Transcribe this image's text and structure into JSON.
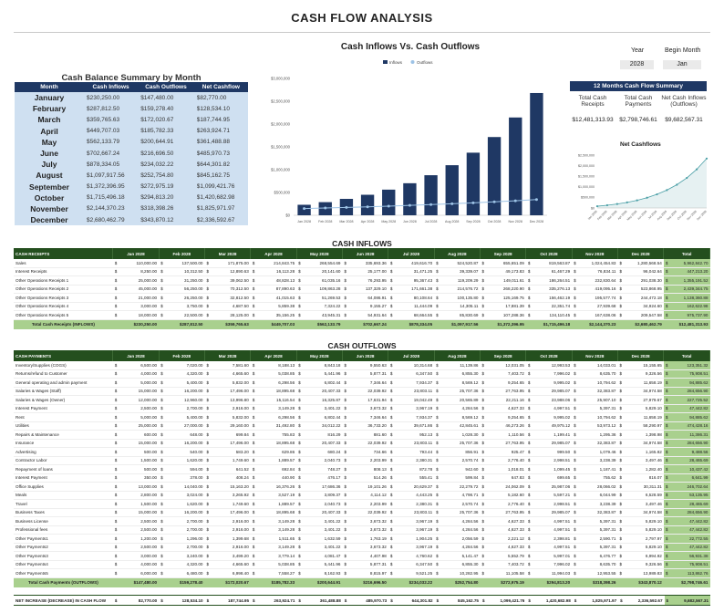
{
  "title": "CASH FLOW ANALYSIS",
  "balance_summary": {
    "title": "Cash Balance Summary by Month",
    "headers": [
      "Month",
      "Cash Inflows",
      "Cash Outflows",
      "Net Cashflow"
    ],
    "rows": [
      [
        "January",
        "$230,250.00",
        "$147,480.00",
        "$82,770.00"
      ],
      [
        "February",
        "$287,812.50",
        "$159,278.40",
        "$128,534.10"
      ],
      [
        "March",
        "$359,765.63",
        "$172,020.67",
        "$187,744.95"
      ],
      [
        "April",
        "$449,707.03",
        "$185,782.33",
        "$263,924.71"
      ],
      [
        "May",
        "$562,133.79",
        "$200,644.91",
        "$361,488.88"
      ],
      [
        "June",
        "$702,667.24",
        "$216,696.50",
        "$485,970.73"
      ],
      [
        "July",
        "$878,334.05",
        "$234,032.22",
        "$644,301.82"
      ],
      [
        "August",
        "$1,097,917.56",
        "$252,754.80",
        "$845,162.75"
      ],
      [
        "September",
        "$1,372,396.95",
        "$272,975.19",
        "$1,099,421.76"
      ],
      [
        "October",
        "$1,715,496.18",
        "$294,813.20",
        "$1,420,682.98"
      ],
      [
        "November",
        "$2,144,370.23",
        "$318,398.26",
        "$1,825,971.97"
      ],
      [
        "December",
        "$2,680,462.79",
        "$343,870.12",
        "$2,336,592.67"
      ]
    ]
  },
  "chart_data": [
    {
      "type": "bar",
      "title": "Cash Inflows Vs. Cash Outflows",
      "categories": [
        "Jan 2028",
        "Feb 2028",
        "Mar 2028",
        "Apr 2028",
        "May 2028",
        "Jun 2028",
        "Jul 2028",
        "Aug 2028",
        "Sep 2028",
        "Oct 2028",
        "Nov 2028",
        "Dec 2028"
      ],
      "series": [
        {
          "name": "Inflows",
          "kind": "bar",
          "color": "#1f3864",
          "values": [
            230250,
            287812.5,
            359765.63,
            449707.03,
            562133.79,
            702667.24,
            878334.05,
            1097917.56,
            1372396.95,
            1715496.18,
            2144370.23,
            2680462.79
          ]
        },
        {
          "name": "Outflows",
          "kind": "line",
          "color": "#9dc3e6",
          "values": [
            147480,
            159278.4,
            172020.67,
            185782.33,
            200644.91,
            216696.5,
            234032.22,
            252754.8,
            272975.19,
            294813.2,
            318398.26,
            343870.12
          ]
        }
      ],
      "ylim": [
        0,
        3000000
      ],
      "yticks": [
        "$0",
        "$500,000",
        "$1,000,000",
        "$1,500,000",
        "$2,000,000",
        "$2,500,000",
        "$3,000,000"
      ],
      "legend": "top-center",
      "grid": false
    },
    {
      "type": "area",
      "title": "Net Cashflows",
      "categories": [
        "Jan 2028",
        "Feb 2028",
        "Mar 2028",
        "Apr 2028",
        "May 2028",
        "Jun 2028",
        "Jul 2028",
        "Aug 2028",
        "Sep 2028",
        "Oct 2028",
        "Nov 2028",
        "Dec 2028"
      ],
      "values": [
        82770,
        128534.1,
        187744.95,
        263924.71,
        361488.88,
        485970.73,
        644301.82,
        845162.75,
        1099421.76,
        1420682.98,
        1825971.97,
        2336592.67
      ],
      "ylim": [
        0,
        2500000
      ],
      "yticks": [
        "$0",
        "$500,000",
        "$1,000,000",
        "$1,500,000",
        "$2,000,000",
        "$2,500,000"
      ],
      "color": "#4a9fa6",
      "grid": false
    }
  ],
  "year": {
    "label": "Year",
    "value": "2028"
  },
  "begin_month": {
    "label": "Begin Month",
    "value": "Jan"
  },
  "summary12": {
    "title": "12 Months Cash Flow Summary",
    "labels": [
      "Total Cash Receipts",
      "Total Cash Payments",
      "Net Cash Inflows (Outflows)"
    ],
    "values": [
      "$12,481,313.93",
      "$2,798,746.61",
      "$9,682,567.31"
    ]
  },
  "inflows": {
    "title": "CASH INFLOWS",
    "header_label": "CASH RECEIPTS",
    "months": [
      "Jan 2028",
      "Feb 2028",
      "Mar 2028",
      "Apr 2028",
      "May 2028",
      "Jun 2028",
      "Jul 2028",
      "Aug 2028",
      "Sep 2028",
      "Oct 2028",
      "Nov 2028",
      "Dec 2028"
    ],
    "total_label": "Total",
    "rows": [
      {
        "label": "Sales",
        "values": [
          "110,000.00",
          "137,500.00",
          "171,875.00",
          "214,843.75",
          "268,554.69",
          "335,693.36",
          "419,616.70",
          "524,520.87",
          "655,651.09",
          "819,563.87",
          "1,024,454.83",
          "1,280,568.54"
        ],
        "total": "5,962,842.70"
      },
      {
        "label": "Interest Receipts",
        "values": [
          "8,250.00",
          "10,312.50",
          "12,890.63",
          "16,113.28",
          "20,141.60",
          "25,177.00",
          "31,471.25",
          "39,339.07",
          "49,173.83",
          "61,467.29",
          "76,834.11",
          "96,042.64"
        ],
        "total": "447,213.20"
      },
      {
        "label": "Other Operations Receipts 1",
        "values": [
          "25,000.00",
          "31,250.00",
          "39,062.50",
          "48,828.13",
          "61,035.16",
          "76,293.95",
          "95,367.43",
          "119,209.29",
          "149,011.61",
          "186,264.51",
          "232,830.64",
          "291,038.30"
        ],
        "total": "1,355,191.52"
      },
      {
        "label": "Other Operations Receipts 2",
        "values": [
          "45,000.00",
          "56,250.00",
          "70,312.50",
          "87,890.63",
          "109,863.28",
          "137,329.10",
          "171,661.38",
          "214,576.72",
          "268,220.90",
          "335,276.13",
          "419,095.16",
          "523,868.95"
        ],
        "total": "2,439,344.75"
      },
      {
        "label": "Other Operations Receipts 3",
        "values": [
          "21,000.00",
          "26,250.00",
          "32,812.50",
          "41,015.63",
          "51,269.53",
          "64,086.91",
          "80,108.64",
          "100,135.80",
          "125,169.75",
          "156,462.19",
          "195,577.74",
          "244,472.18"
        ],
        "total": "1,138,360.88"
      },
      {
        "label": "Other Operations Receipts 4",
        "values": [
          "3,000.00",
          "3,750.00",
          "4,687.50",
          "5,859.38",
          "7,324.22",
          "9,155.27",
          "11,444.09",
          "14,305.11",
          "17,881.39",
          "22,351.74",
          "27,939.68",
          "34,924.60"
        ],
        "total": "162,622.98"
      },
      {
        "label": "Other Operations Receipts 5",
        "values": [
          "18,000.00",
          "22,500.00",
          "28,125.00",
          "35,156.25",
          "43,945.31",
          "54,931.64",
          "68,664.55",
          "85,830.69",
          "107,288.36",
          "134,110.45",
          "167,638.06",
          "209,547.58"
        ],
        "total": "975,737.90"
      }
    ],
    "total_row": {
      "label": "Total Cash Receipts (INFLOWS)",
      "values": [
        "$230,250.00",
        "$287,812.50",
        "$359,765.63",
        "$449,707.03",
        "$562,133.79",
        "$702,667.24",
        "$878,334.05",
        "$1,097,917.56",
        "$1,372,396.95",
        "$1,715,496.18",
        "$2,144,370.23",
        "$2,680,462.79"
      ],
      "total": "$12,481,313.93"
    }
  },
  "outflows": {
    "title": "CASH OUTFLOWS",
    "header_label": "CASH PAYMENTS",
    "months": [
      "Jan 2028",
      "Feb 2028",
      "Mar 2028",
      "Apr 2028",
      "May 2028",
      "Jun 2028",
      "Jul 2028",
      "Aug 2028",
      "Sep 2028",
      "Oct 2028",
      "Nov 2028",
      "Dec 2028"
    ],
    "total_label": "Total",
    "rows": [
      {
        "label": "Inventory/Supplies (COGS)",
        "values": [
          "6,500.00",
          "7,020.00",
          "7,581.60",
          "8,188.13",
          "8,843.18",
          "9,550.63",
          "10,314.68",
          "11,139.86",
          "12,031.05",
          "12,993.53",
          "14,033.01",
          "15,155.65"
        ],
        "total": "123,351.32"
      },
      {
        "label": "Returns/refund to Customer",
        "values": [
          "4,000.00",
          "4,320.00",
          "4,665.60",
          "5,038.85",
          "5,441.96",
          "5,877.31",
          "6,347.50",
          "6,855.30",
          "7,403.72",
          "7,996.02",
          "8,635.70",
          "9,326.56"
        ],
        "total": "75,908.51"
      },
      {
        "label": "General operating and admin payment",
        "values": [
          "5,000.00",
          "5,400.00",
          "5,832.00",
          "6,298.56",
          "6,802.44",
          "7,346.64",
          "7,934.37",
          "8,569.12",
          "9,254.65",
          "9,995.02",
          "10,794.62",
          "11,658.19"
        ],
        "total": "94,885.62"
      },
      {
        "label": "Salaries & Wages (Staff)",
        "values": [
          "15,000.00",
          "16,200.00",
          "17,496.00",
          "18,895.68",
          "20,407.33",
          "22,039.92",
          "23,803.11",
          "25,707.36",
          "27,763.95",
          "29,985.07",
          "32,383.87",
          "34,974.58"
        ],
        "total": "284,656.90"
      },
      {
        "label": "Salaries & Wages (Owner)",
        "values": [
          "12,000.00",
          "12,960.00",
          "13,996.80",
          "15,116.54",
          "16,325.87",
          "17,631.94",
          "19,042.49",
          "20,565.89",
          "22,211.16",
          "23,988.06",
          "25,907.10",
          "27,979.67"
        ],
        "total": "227,725.52"
      },
      {
        "label": "Interest Payment",
        "values": [
          "2,500.00",
          "2,700.00",
          "2,916.00",
          "3,149.28",
          "3,401.22",
          "3,673.32",
          "3,967.19",
          "4,284.56",
          "4,627.33",
          "4,997.51",
          "5,397.31",
          "5,829.10"
        ],
        "total": "47,442.82"
      },
      {
        "label": "Rent",
        "values": [
          "5,000.00",
          "5,400.00",
          "5,832.00",
          "6,298.56",
          "6,802.44",
          "7,346.64",
          "7,934.37",
          "8,569.12",
          "9,254.65",
          "9,995.02",
          "10,794.62",
          "11,658.19"
        ],
        "total": "94,885.62"
      },
      {
        "label": "Utilities",
        "values": [
          "25,000.00",
          "27,000.00",
          "29,160.00",
          "31,492.80",
          "34,012.22",
          "36,733.20",
          "39,671.86",
          "42,845.61",
          "46,273.26",
          "49,975.12",
          "53,973.12",
          "58,290.97"
        ],
        "total": "474,428.16"
      },
      {
        "label": "Repairs & Maintenance",
        "values": [
          "600.00",
          "648.00",
          "699.84",
          "755.83",
          "816.29",
          "881.60",
          "952.13",
          "1,028.30",
          "1,110.56",
          "1,199.41",
          "1,295.36",
          "1,398.98"
        ],
        "total": "11,386.31"
      },
      {
        "label": "Insurance",
        "values": [
          "15,000.00",
          "16,200.00",
          "17,496.00",
          "18,895.68",
          "20,407.33",
          "22,039.92",
          "23,803.11",
          "25,707.36",
          "27,763.95",
          "29,985.07",
          "32,383.87",
          "34,974.58"
        ],
        "total": "284,656.90"
      },
      {
        "label": "Advertising",
        "values": [
          "500.00",
          "540.00",
          "583.20",
          "629.86",
          "680.24",
          "734.66",
          "793.44",
          "856.91",
          "925.47",
          "999.50",
          "1,079.46",
          "1,165.82"
        ],
        "total": "9,488.56"
      },
      {
        "label": "Contractor Labor",
        "values": [
          "1,500.00",
          "1,620.00",
          "1,749.60",
          "1,889.57",
          "2,040.73",
          "2,203.99",
          "2,380.31",
          "2,570.74",
          "2,776.40",
          "2,998.51",
          "3,238.39",
          "3,497.46"
        ],
        "total": "28,465.69"
      },
      {
        "label": "Repayment of loans",
        "values": [
          "500.00",
          "594.00",
          "641.52",
          "692.84",
          "748.27",
          "808.13",
          "872.78",
          "942.60",
          "1,018.01",
          "1,099.45",
          "1,187.41",
          "1,282.40"
        ],
        "total": "10,437.42"
      },
      {
        "label": "Interest Payment",
        "values": [
          "350.00",
          "378.00",
          "408.24",
          "440.90",
          "476.17",
          "514.26",
          "555.41",
          "599.84",
          "647.83",
          "699.65",
          "755.62",
          "816.07"
        ],
        "total": "6,641.99"
      },
      {
        "label": "Office Supplies",
        "values": [
          "13,000.00",
          "14,040.00",
          "15,163.20",
          "16,376.26",
          "17,686.36",
          "19,101.26",
          "20,629.37",
          "22,279.72",
          "24,062.09",
          "25,987.06",
          "28,066.02",
          "30,311.31"
        ],
        "total": "246,702.64"
      },
      {
        "label": "Meals",
        "values": [
          "2,800.00",
          "3,024.00",
          "3,265.92",
          "3,527.19",
          "3,809.37",
          "4,114.12",
          "4,443.25",
          "4,798.71",
          "5,182.60",
          "5,597.21",
          "6,044.99",
          "6,528.59"
        ],
        "total": "53,135.95"
      },
      {
        "label": "Travel",
        "values": [
          "1,500.00",
          "1,620.00",
          "1,749.60",
          "1,889.57",
          "2,040.73",
          "2,203.99",
          "2,380.31",
          "2,570.74",
          "2,776.40",
          "2,998.51",
          "3,238.39",
          "3,497.46"
        ],
        "total": "28,465.69"
      },
      {
        "label": "Business Taxes",
        "values": [
          "15,000.00",
          "16,200.00",
          "17,496.00",
          "18,895.68",
          "20,407.33",
          "22,039.92",
          "23,803.11",
          "25,707.36",
          "27,763.95",
          "29,985.07",
          "32,383.87",
          "34,974.58"
        ],
        "total": "284,656.90"
      },
      {
        "label": "Business License",
        "values": [
          "2,500.00",
          "2,700.00",
          "2,916.00",
          "3,149.28",
          "3,401.22",
          "3,673.32",
          "3,967.19",
          "4,284.56",
          "4,627.33",
          "4,997.51",
          "5,397.31",
          "5,829.10"
        ],
        "total": "47,442.82"
      },
      {
        "label": "Professional fees",
        "values": [
          "2,500.00",
          "2,700.00",
          "2,916.00",
          "3,149.28",
          "3,401.22",
          "3,673.32",
          "3,967.19",
          "4,284.56",
          "4,627.33",
          "4,997.51",
          "5,397.31",
          "5,829.10"
        ],
        "total": "47,442.82"
      },
      {
        "label": "Other Payments1",
        "values": [
          "1,200.00",
          "1,296.00",
          "1,399.68",
          "1,511.65",
          "1,632.59",
          "1,763.19",
          "1,904.25",
          "2,056.59",
          "2,221.12",
          "2,398.81",
          "2,590.71",
          "2,797.97"
        ],
        "total": "22,772.55"
      },
      {
        "label": "Other Payments2",
        "values": [
          "2,500.00",
          "2,700.00",
          "2,916.00",
          "3,149.28",
          "3,401.22",
          "3,673.32",
          "3,967.19",
          "4,284.56",
          "4,627.33",
          "4,997.51",
          "5,397.31",
          "5,829.10"
        ],
        "total": "47,442.82"
      },
      {
        "label": "Other Payments3",
        "values": [
          "3,000.00",
          "3,240.00",
          "3,499.20",
          "3,779.14",
          "4,081.47",
          "4,407.98",
          "4,760.62",
          "5,141.47",
          "5,552.79",
          "5,997.01",
          "6,476.77",
          "6,994.92"
        ],
        "total": "56,931.38"
      },
      {
        "label": "Other Payments4",
        "values": [
          "4,000.00",
          "4,320.00",
          "4,665.60",
          "5,038.85",
          "5,441.96",
          "5,877.31",
          "6,347.50",
          "6,855.30",
          "7,403.72",
          "7,996.02",
          "8,635.70",
          "9,326.56"
        ],
        "total": "75,908.51"
      },
      {
        "label": "Other Payments5",
        "values": [
          "6,000.00",
          "6,480.00",
          "6,998.40",
          "7,558.27",
          "8,162.93",
          "8,815.97",
          "9,521.25",
          "10,282.95",
          "11,105.58",
          "11,994.03",
          "12,953.55",
          "13,989.83"
        ],
        "total": "113,862.76"
      }
    ],
    "total_row": {
      "label": "Total Cash Payments (OUTFLOWS)",
      "values": [
        "$147,480.00",
        "$159,278.40",
        "$172,020.67",
        "$185,782.33",
        "$200,644.91",
        "$216,696.50",
        "$234,032.22",
        "$252,754.80",
        "$272,975.19",
        "$294,813.20",
        "$318,398.26",
        "$343,870.12"
      ],
      "total": "$2,798,746.61"
    }
  },
  "net": {
    "label": "NET INCREASE (DECREASE) IN CASH FLOW",
    "values": [
      "82,770.00",
      "128,534.10",
      "187,744.95",
      "263,924.71",
      "361,488.88",
      "485,970.73",
      "644,301.82",
      "845,162.75",
      "1,099,421.76",
      "1,420,682.98",
      "1,825,971.97",
      "2,336,592.67"
    ],
    "total": "9,682,567.31"
  }
}
